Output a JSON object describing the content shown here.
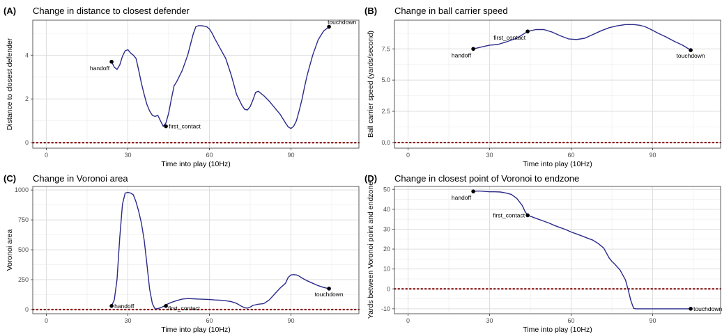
{
  "chart_data": [
    {
      "tag": "(A)",
      "type": "line",
      "title": "Change in distance to closest defender",
      "xlabel": "Time into play (10Hz)",
      "ylabel": "Distance to closest defender",
      "xlim": [
        -5,
        115
      ],
      "ylim": [
        -0.25,
        5.6
      ],
      "xticks": [
        0,
        30,
        60,
        90
      ],
      "yticks": [
        0,
        2,
        4
      ],
      "grid": true,
      "baseline": 0,
      "series": [
        {
          "x": [
            24,
            25,
            26,
            27,
            28,
            29,
            30,
            31,
            32,
            33,
            34,
            35,
            36,
            37,
            38,
            39,
            40,
            41,
            42,
            43,
            44,
            45,
            46,
            47,
            48,
            50,
            52,
            54,
            55,
            56,
            57,
            58,
            59,
            60,
            61,
            62,
            64,
            66,
            68,
            70,
            72,
            73,
            74,
            75,
            76,
            77,
            78,
            79,
            80,
            82,
            84,
            86,
            88,
            89,
            90,
            91,
            92,
            93,
            94,
            95,
            96,
            98,
            100,
            102,
            104
          ],
          "y": [
            3.7,
            3.45,
            3.35,
            3.55,
            3.95,
            4.2,
            4.25,
            4.1,
            4.0,
            3.85,
            3.3,
            2.7,
            2.2,
            1.75,
            1.45,
            1.25,
            1.2,
            1.25,
            1.0,
            0.75,
            0.9,
            1.35,
            2.0,
            2.6,
            2.8,
            3.3,
            4.0,
            4.95,
            5.3,
            5.35,
            5.35,
            5.33,
            5.3,
            5.2,
            5.0,
            4.75,
            4.3,
            3.85,
            3.1,
            2.2,
            1.7,
            1.52,
            1.5,
            1.65,
            1.95,
            2.3,
            2.35,
            2.25,
            2.15,
            1.9,
            1.6,
            1.3,
            0.9,
            0.72,
            0.65,
            0.75,
            1.0,
            1.45,
            1.95,
            2.55,
            3.1,
            4.0,
            4.7,
            5.1,
            5.3
          ]
        }
      ],
      "annotations": [
        {
          "label": "handoff",
          "x": 24,
          "y": 3.7,
          "pos": "bl"
        },
        {
          "label": "first_contact",
          "x": 44,
          "y": 0.75,
          "pos": "r"
        },
        {
          "label": "touchdown",
          "x": 104,
          "y": 5.3,
          "pos": "tr"
        }
      ]
    },
    {
      "tag": "(B)",
      "type": "line",
      "title": "Change in ball carrier speed",
      "xlabel": "Time into play (10Hz)",
      "ylabel": "Ball carrier speed (yards/second)",
      "xlim": [
        -5,
        115
      ],
      "ylim": [
        -0.45,
        9.8
      ],
      "xticks": [
        0,
        30,
        60,
        90
      ],
      "yticks": [
        0.0,
        2.5,
        5.0,
        7.5
      ],
      "yticklabels": [
        "0.0",
        "2.5",
        "5.0",
        "7.5"
      ],
      "grid": true,
      "baseline": 0,
      "series": [
        {
          "x": [
            24,
            27,
            30,
            33,
            36,
            40,
            44,
            47,
            50,
            53,
            56,
            59,
            62,
            65,
            68,
            71,
            74,
            77,
            80,
            83,
            85,
            87,
            89,
            92,
            95,
            98,
            101,
            104
          ],
          "y": [
            7.5,
            7.65,
            7.8,
            7.85,
            8.05,
            8.35,
            8.9,
            9.05,
            9.05,
            8.85,
            8.55,
            8.3,
            8.25,
            8.35,
            8.65,
            8.95,
            9.2,
            9.35,
            9.45,
            9.45,
            9.4,
            9.3,
            9.1,
            8.75,
            8.45,
            8.1,
            7.8,
            7.4
          ]
        }
      ],
      "annotations": [
        {
          "label": "handoff",
          "x": 24,
          "y": 7.5,
          "pos": "bl"
        },
        {
          "label": "first_contact",
          "x": 44,
          "y": 8.9,
          "pos": "bl"
        },
        {
          "label": "touchdown",
          "x": 104,
          "y": 7.4,
          "pos": "b"
        }
      ]
    },
    {
      "tag": "(C)",
      "type": "line",
      "title": "Change in Voronoi area",
      "xlabel": "Time into play (10Hz)",
      "ylabel": "Voronoi area",
      "xlim": [
        -5,
        115
      ],
      "ylim": [
        -35,
        1030
      ],
      "xticks": [
        0,
        30,
        60,
        90
      ],
      "yticks": [
        0,
        250,
        500,
        750,
        1000
      ],
      "grid": true,
      "baseline": 0,
      "series": [
        {
          "x": [
            24,
            25,
            26,
            27,
            28,
            29,
            30,
            31,
            32,
            33,
            34,
            35,
            36,
            37,
            38,
            39,
            40,
            41,
            42,
            43,
            44,
            46,
            48,
            50,
            52,
            54,
            56,
            58,
            60,
            62,
            64,
            66,
            68,
            70,
            72,
            73,
            74,
            75,
            76,
            78,
            80,
            82,
            84,
            86,
            88,
            89,
            90,
            91,
            92,
            93,
            94,
            96,
            98,
            100,
            102,
            104
          ],
          "y": [
            30,
            80,
            250,
            600,
            880,
            975,
            980,
            975,
            960,
            900,
            820,
            720,
            580,
            380,
            170,
            50,
            5,
            8,
            15,
            25,
            40,
            60,
            75,
            88,
            92,
            90,
            88,
            86,
            84,
            80,
            78,
            74,
            66,
            52,
            25,
            15,
            12,
            20,
            35,
            45,
            50,
            80,
            130,
            180,
            220,
            270,
            290,
            292,
            290,
            280,
            265,
            240,
            220,
            200,
            185,
            175
          ]
        }
      ],
      "annotations": [
        {
          "label": "handoff",
          "x": 24,
          "y": 30,
          "pos": "r"
        },
        {
          "label": "first_contact",
          "x": 44,
          "y": 30,
          "pos": "br"
        },
        {
          "label": "touchdown",
          "x": 104,
          "y": 175,
          "pos": "b"
        }
      ]
    },
    {
      "tag": "(D)",
      "type": "line",
      "title": "Change in closest point of Voronoi to endzone",
      "xlabel": "Time into play (10Hz)",
      "ylabel": "Yards between Voronoi point and endzone",
      "xlim": [
        -5,
        115
      ],
      "ylim": [
        -12.5,
        51.5
      ],
      "xticks": [
        0,
        30,
        60,
        90
      ],
      "yticks": [
        -10,
        0,
        10,
        20,
        30,
        40,
        50
      ],
      "grid": true,
      "baseline": 0,
      "series": [
        {
          "x": [
            24,
            26,
            28,
            30,
            32,
            34,
            36,
            38,
            40,
            42,
            43,
            44,
            46,
            48,
            50,
            52,
            54,
            56,
            58,
            60,
            62,
            64,
            66,
            68,
            70,
            72,
            74,
            75,
            76,
            78,
            80,
            81,
            82,
            83,
            84,
            88,
            92,
            96,
            100,
            104
          ],
          "y": [
            49,
            49.2,
            49,
            48.8,
            48.8,
            48.7,
            48.2,
            47.5,
            45.5,
            42,
            39,
            37,
            36,
            35,
            34,
            33,
            31.8,
            30.8,
            29.8,
            28.6,
            27.6,
            26.6,
            25.5,
            24.5,
            22.8,
            20.5,
            15.5,
            13.8,
            12.5,
            9.5,
            4.5,
            -0.5,
            -6,
            -9.8,
            -10,
            -10,
            -10,
            -10,
            -10,
            -10
          ]
        }
      ],
      "annotations": [
        {
          "label": "handoff",
          "x": 24,
          "y": 49,
          "pos": "bl"
        },
        {
          "label": "first_contact",
          "x": 44,
          "y": 37,
          "pos": "l"
        },
        {
          "label": "touchdown",
          "x": 104,
          "y": -10,
          "pos": "r"
        }
      ]
    }
  ]
}
